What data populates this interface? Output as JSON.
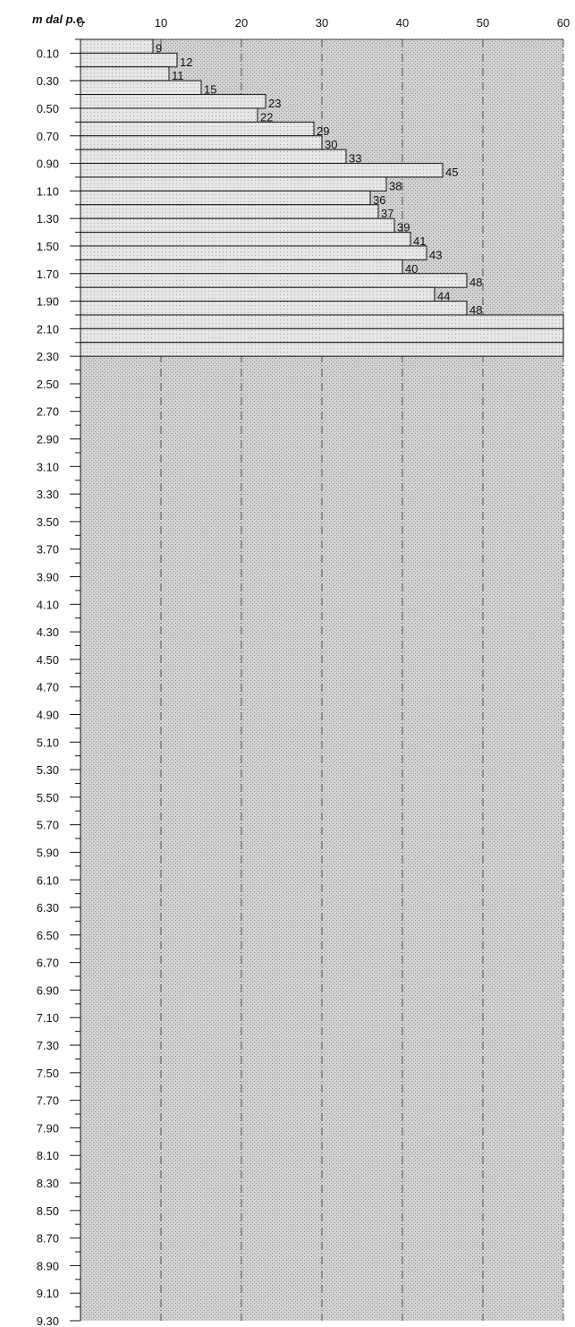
{
  "chart_data": {
    "type": "bar",
    "orientation": "horizontal",
    "title": "",
    "ylabel": "m dal p.c.",
    "xlabel": "",
    "xlim": [
      0,
      60
    ],
    "x_ticks": [
      "0",
      "10",
      "20",
      "30",
      "40",
      "50",
      "60"
    ],
    "ylim": [
      0.0,
      9.3
    ],
    "y_ticks": [
      "0.10",
      "0.30",
      "0.50",
      "0.70",
      "0.90",
      "1.10",
      "1.30",
      "1.50",
      "1.70",
      "1.90",
      "2.10",
      "2.30",
      "2.50",
      "2.70",
      "2.90",
      "3.10",
      "3.30",
      "3.50",
      "3.70",
      "3.90",
      "4.10",
      "4.30",
      "4.50",
      "4.70",
      "4.90",
      "5.10",
      "5.30",
      "5.50",
      "5.70",
      "5.90",
      "6.10",
      "6.30",
      "6.50",
      "6.70",
      "6.90",
      "7.10",
      "7.30",
      "7.50",
      "7.70",
      "7.90",
      "8.10",
      "8.30",
      "8.50",
      "8.70",
      "8.90",
      "9.10",
      "9.30"
    ],
    "depths_from": [
      0.0,
      0.1,
      0.2,
      0.3,
      0.4,
      0.5,
      0.6,
      0.7,
      0.8,
      0.9,
      1.0,
      1.1,
      1.2,
      1.3,
      1.4,
      1.5,
      1.6,
      1.7,
      1.8,
      1.9,
      2.0,
      2.1,
      2.2
    ],
    "depths_to": [
      0.1,
      0.2,
      0.3,
      0.4,
      0.5,
      0.6,
      0.7,
      0.8,
      0.9,
      1.0,
      1.1,
      1.2,
      1.3,
      1.4,
      1.5,
      1.6,
      1.7,
      1.8,
      1.9,
      2.0,
      2.1,
      2.2,
      2.3
    ],
    "values": [
      9,
      12,
      11,
      15,
      23,
      22,
      29,
      30,
      33,
      45,
      38,
      36,
      37,
      39,
      41,
      43,
      40,
      48,
      44,
      48,
      60,
      60,
      60
    ],
    "value_labels": [
      "9",
      "12",
      "11",
      "15",
      "23",
      "22",
      "29",
      "30",
      "33",
      "45",
      "38",
      "36",
      "37",
      "39",
      "41",
      "43",
      "40",
      "48",
      "44",
      "48",
      "",
      "",
      ""
    ],
    "grid": true,
    "grid_style": "dash-dot vertical",
    "fill": "stippled grey",
    "colors": {
      "bar_fill": "#dedede",
      "bar_stroke": "#111111",
      "plot_bg": "#c9c9c9",
      "grid": "#333333"
    }
  }
}
